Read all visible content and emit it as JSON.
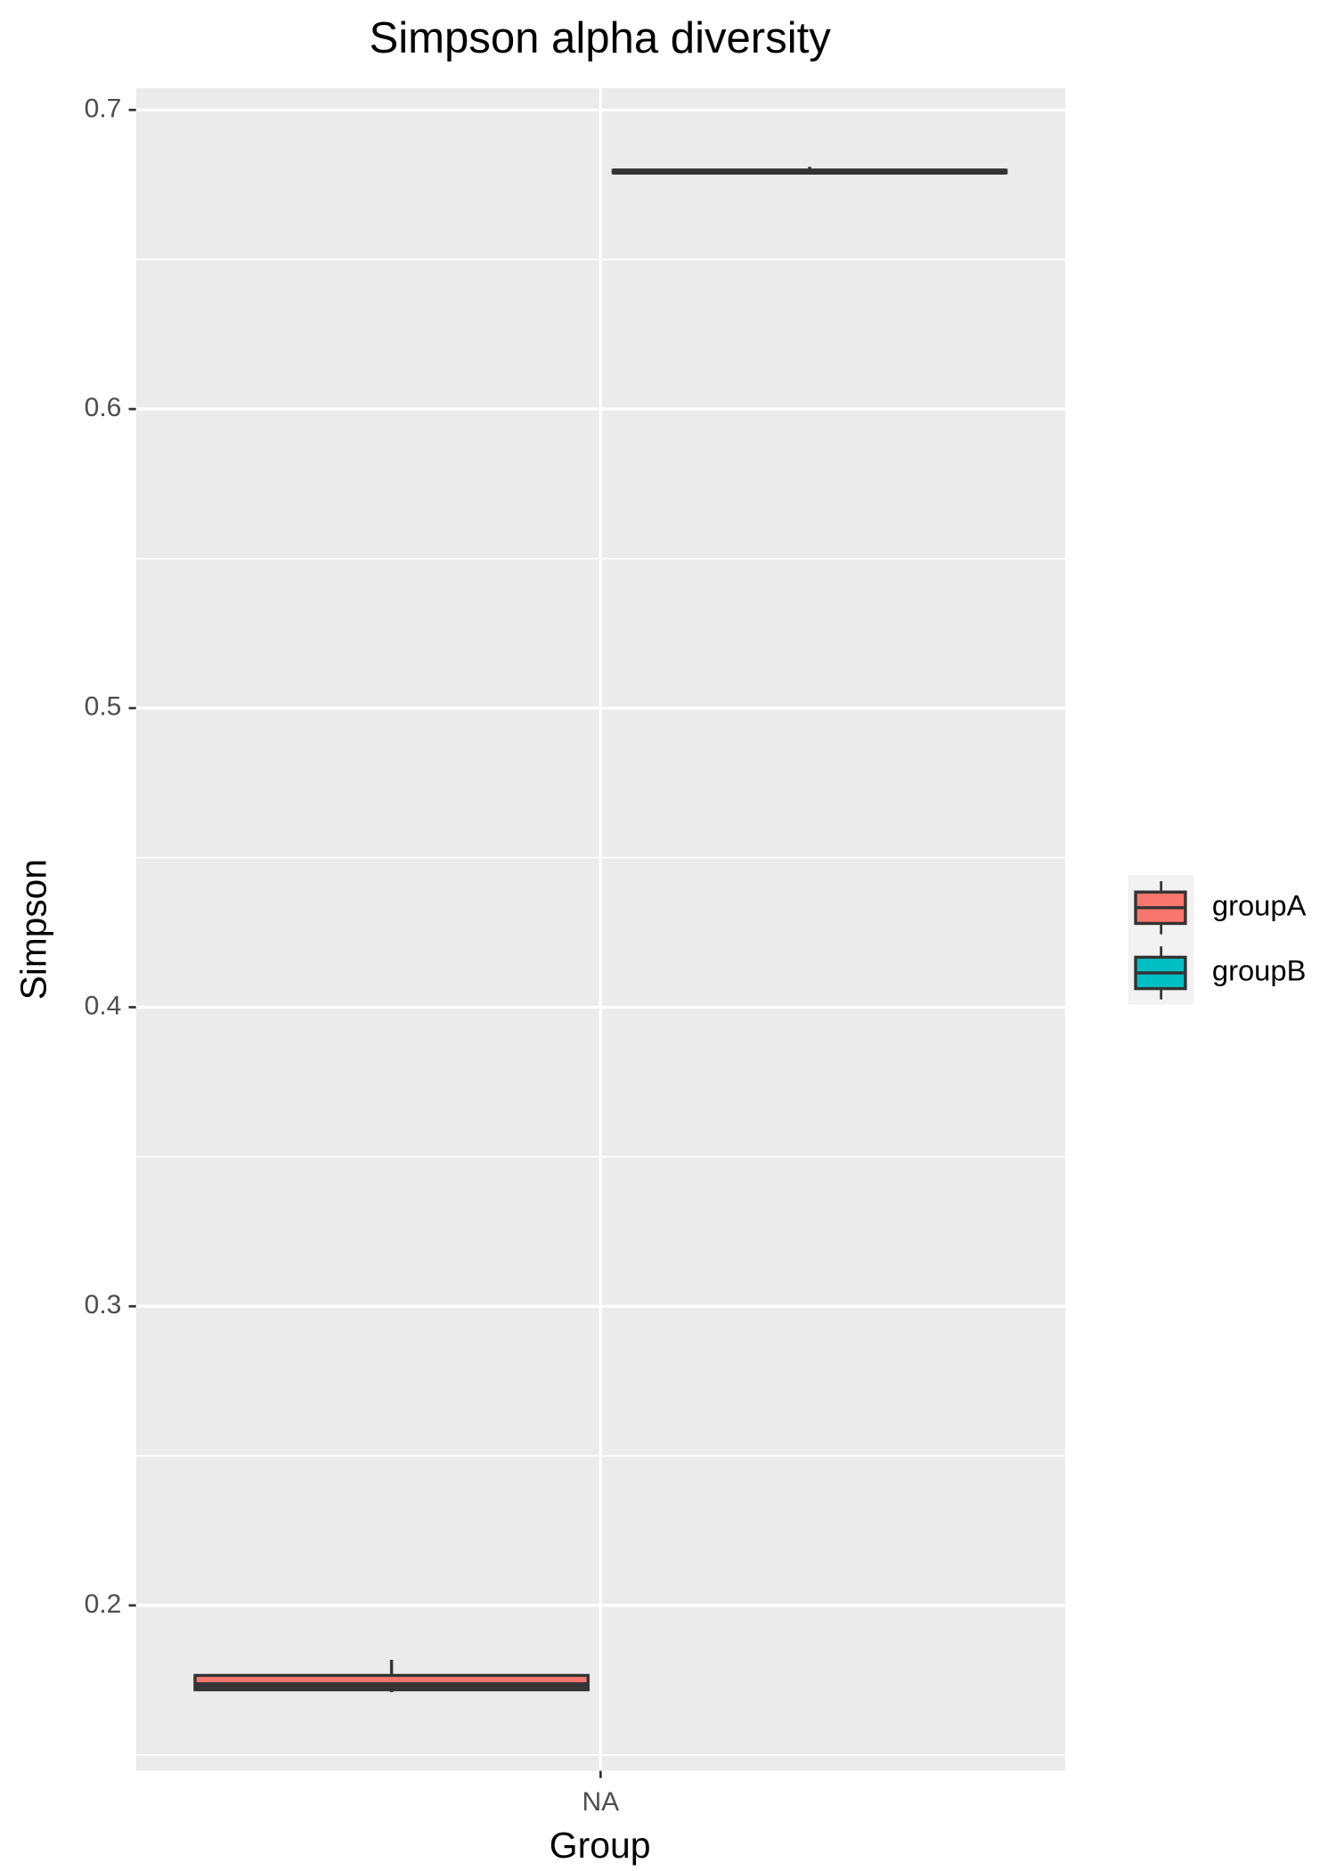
{
  "chart_data": {
    "type": "box",
    "title": "Simpson alpha diversity",
    "x_label": "Group",
    "y_label": "Simpson",
    "categories": [
      "NA"
    ],
    "series": [
      {
        "name": "groupA",
        "color": "#f8766d",
        "values": [
          {
            "min": 0.171,
            "q1": 0.1718,
            "median": 0.1733,
            "q3": 0.1766,
            "max": 0.1818
          }
        ]
      },
      {
        "name": "groupB",
        "color": "#00bfc4",
        "values": [
          {
            "min": 0.679,
            "q1": 0.679,
            "median": 0.6794,
            "q3": 0.6798,
            "max": 0.681
          }
        ]
      }
    ],
    "ylim": [
      0.1447,
      0.7073
    ],
    "yticks": [
      0.2,
      0.3,
      0.4,
      0.5,
      0.6,
      0.7
    ],
    "y_minor_grid": [
      0.15,
      0.25,
      0.35,
      0.45,
      0.55,
      0.65
    ],
    "grid": true,
    "legend_position": "right"
  }
}
